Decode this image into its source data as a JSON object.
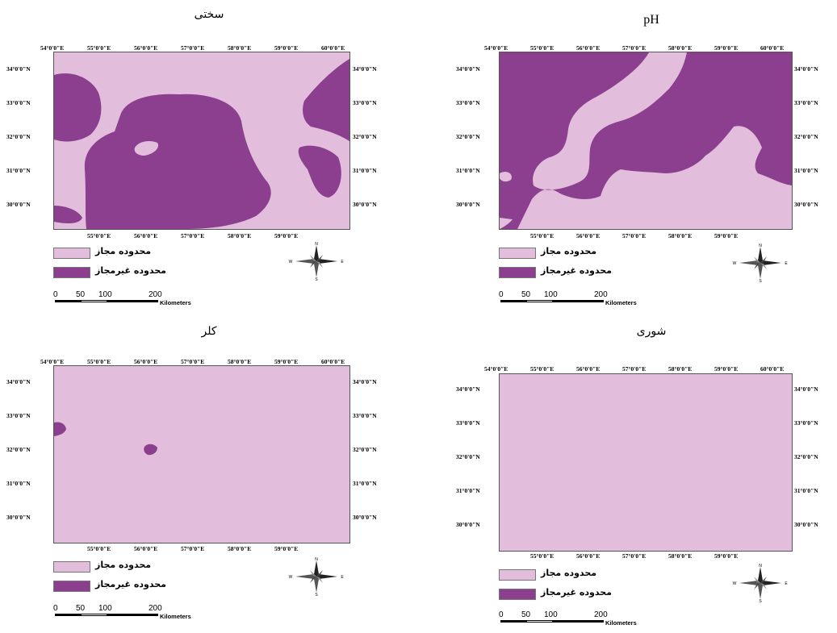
{
  "panels": [
    {
      "id": "hardness",
      "title": "سختی",
      "top_labels": [
        "54°0'0\"E",
        "55°0'0\"E",
        "56°0'0\"E",
        "57°0'0\"E",
        "58°0'0\"E",
        "59°0'0\"E",
        "60°0'0\"E"
      ],
      "bottom_labels": [
        "55°0'0\"E",
        "56°0'0\"E",
        "57°0'0\"E",
        "58°0'0\"E",
        "59°0'0\"E"
      ],
      "left_labels": [
        "34°0'0\"N",
        "33°0'0\"N",
        "32°0'0\"N",
        "31°0'0\"N",
        "30°0'0\"N"
      ],
      "right_labels": [
        "34°0'0\"N",
        "33°0'0\"N",
        "32°0'0\"N",
        "31°0'0\"N",
        "30°0'0\"N"
      ]
    },
    {
      "id": "ph",
      "title": "pH",
      "top_labels": [
        "54°0'0\"E",
        "55°0'0\"E",
        "56°0'0\"E",
        "57°0'0\"E",
        "58°0'0\"E",
        "59°0'0\"E",
        "60°0'0\"E"
      ],
      "bottom_labels": [
        "55°0'0\"E",
        "56°0'0\"E",
        "57°0'0\"E",
        "58°0'0\"E",
        "59°0'0\"E"
      ],
      "left_labels": [
        "34°0'0\"N",
        "33°0'0\"N",
        "32°0'0\"N",
        "31°0'0\"N",
        "30°0'0\"N"
      ],
      "right_labels": [
        "34°0'0\"N",
        "33°0'0\"N",
        "32°0'0\"N",
        "31°0'0\"N",
        "30°0'0\"N"
      ]
    },
    {
      "id": "chlorine",
      "title": "کلر",
      "top_labels": [
        "54°0'0\"E",
        "55°0'0\"E",
        "56°0'0\"E",
        "57°0'0\"E",
        "58°0'0\"E",
        "59°0'0\"E",
        "60°0'0\"E"
      ],
      "bottom_labels": [
        "55°0'0\"E",
        "56°0'0\"E",
        "57°0'0\"E",
        "58°0'0\"E",
        "59°0'0\"E"
      ],
      "left_labels": [
        "34°0'0\"N",
        "33°0'0\"N",
        "32°0'0\"N",
        "31°0'0\"N",
        "30°0'0\"N"
      ],
      "right_labels": [
        "34°0'0\"N",
        "33°0'0\"N",
        "32°0'0\"N",
        "31°0'0\"N",
        "30°0'0\"N"
      ]
    },
    {
      "id": "salinity",
      "title": "شوری",
      "top_labels": [
        "54°0'0\"E",
        "55°0'0\"E",
        "56°0'0\"E",
        "57°0'0\"E",
        "58°0'0\"E",
        "59°0'0\"E",
        "60°0'0\"E"
      ],
      "bottom_labels": [
        "55°0'0\"E",
        "56°0'0\"E",
        "57°0'0\"E",
        "58°0'0\"E",
        "59°0'0\"E"
      ],
      "left_labels": [
        "34°0'0\"N",
        "33°0'0\"N",
        "32°0'0\"N",
        "31°0'0\"N",
        "30°0'0\"N"
      ],
      "right_labels": [
        "34°0'0\"N",
        "33°0'0\"N",
        "32°0'0\"N",
        "31°0'0\"N",
        "30°0'0\"N"
      ]
    }
  ],
  "legend": {
    "allowed": "محدوده مجاز",
    "not_allowed": "محدوده  غیرمجاز",
    "allowed_color": "#e2bddc",
    "not_allowed_color": "#8b3f8e"
  },
  "scale_bar": {
    "ticks": [
      "0",
      "50",
      "100",
      "200"
    ],
    "unit": "Kilometers"
  },
  "compass": {
    "n": "N",
    "s": "S",
    "e": "E",
    "w": "W"
  }
}
